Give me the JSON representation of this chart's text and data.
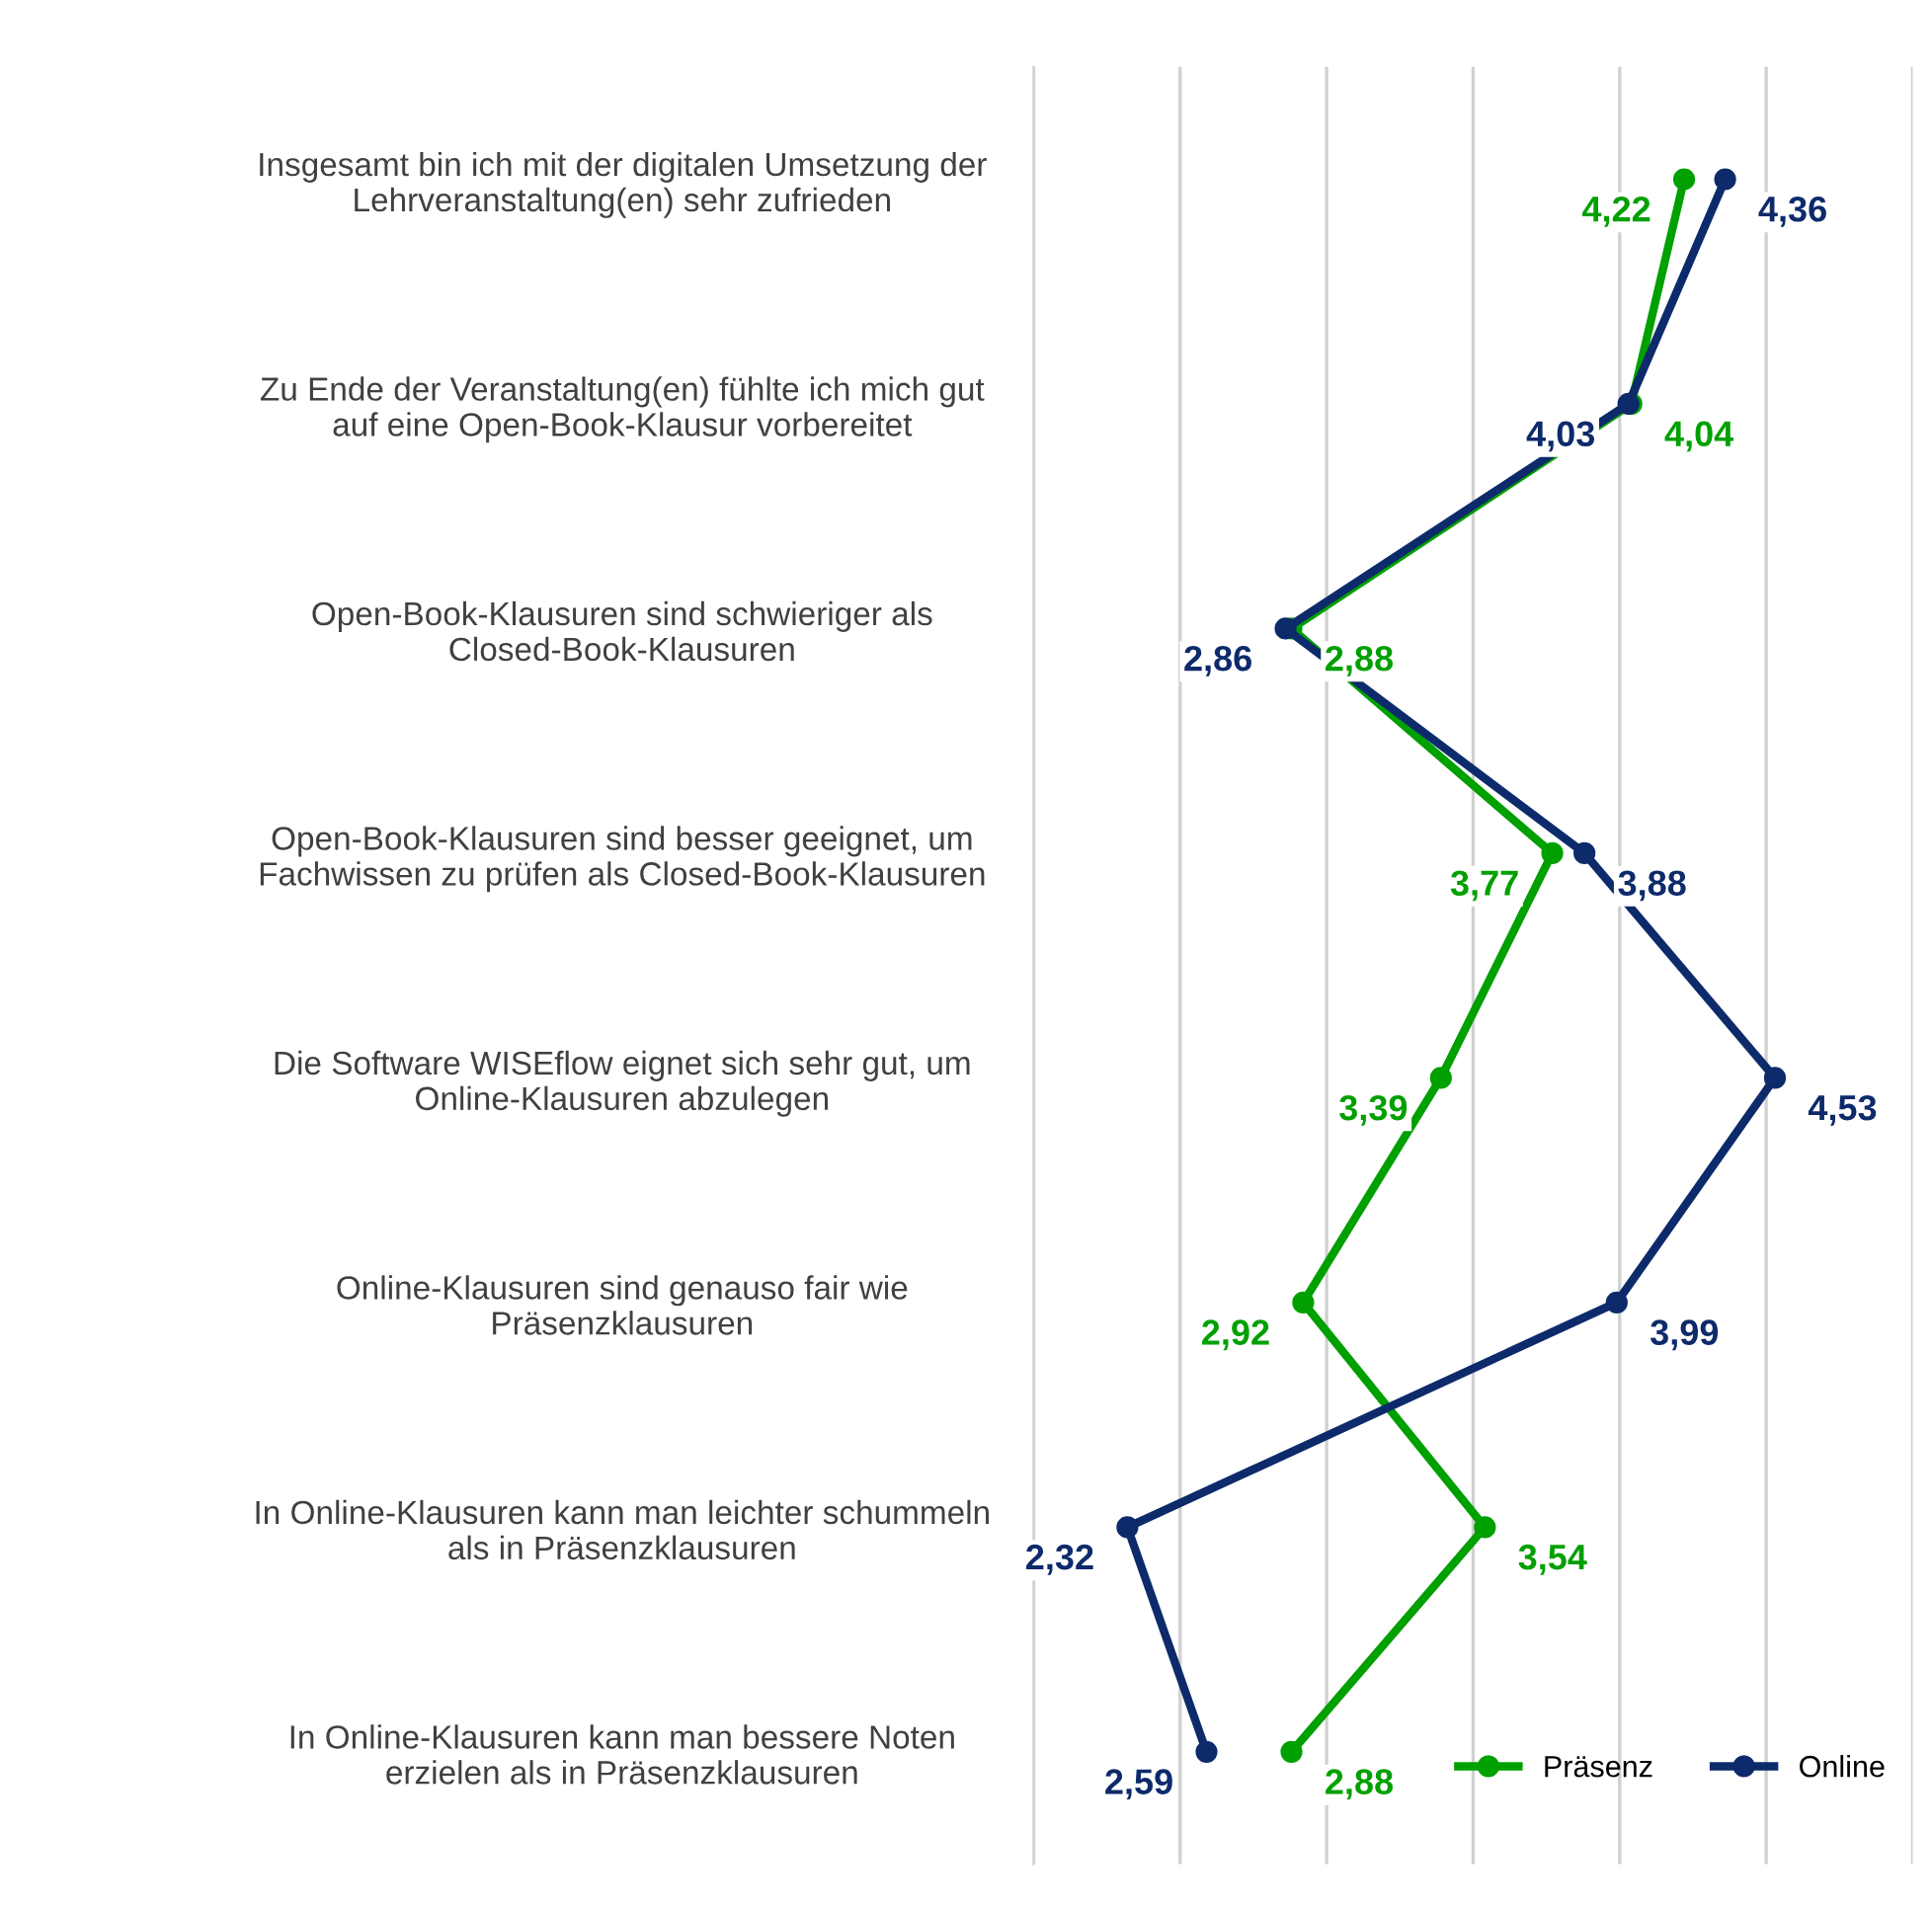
{
  "chart_data": {
    "type": "line",
    "orientation": "horizontal",
    "categories": [
      "Insgesamt bin ich mit der digitalen Umsetzung der\nLehrveranstaltung(en) sehr zufrieden",
      "Zu Ende der Veranstaltung(en) fühlte ich mich gut\nauf eine Open-Book-Klausur vorbereitet",
      "Open-Book-Klausuren sind schwieriger als\nClosed-Book-Klausuren",
      "Open-Book-Klausuren sind besser geeignet, um\nFachwissen zu prüfen als Closed-Book-Klausuren",
      "Die Software WISEflow eignet sich sehr gut, um\nOnline-Klausuren abzulegen",
      "Online-Klausuren sind genauso fair wie\nPräsenzklausuren",
      "In Online-Klausuren kann man leichter schummeln\nals in Präsenzklausuren",
      "In Online-Klausuren kann man bessere Noten\nerzielen als in Präsenzklausuren"
    ],
    "series": [
      {
        "name": "Präsenz",
        "color": "#00a000",
        "values": [
          4.22,
          4.04,
          2.88,
          3.77,
          3.39,
          2.92,
          3.54,
          2.88
        ],
        "value_labels": [
          "4,22",
          "4,04",
          "2,88",
          "3,77",
          "3,39",
          "2,92",
          "3,54",
          "2,88"
        ]
      },
      {
        "name": "Online",
        "color": "#0d2a6b",
        "values": [
          4.36,
          4.03,
          2.86,
          3.88,
          4.53,
          3.99,
          2.32,
          2.59
        ],
        "value_labels": [
          "4,36",
          "4,03",
          "2,86",
          "3,88",
          "4,53",
          "3,99",
          "2,32",
          "2,59"
        ]
      }
    ],
    "xlim": [
      2,
      5
    ],
    "xticks": [
      {
        "value": 2,
        "label": null
      },
      {
        "value": 2.5,
        "label": null
      },
      {
        "value": 3,
        "label": null
      },
      {
        "value": 3.5,
        "label": null
      },
      {
        "value": 4,
        "label": null
      },
      {
        "value": 4.5,
        "label": null
      },
      {
        "value": 5,
        "label": null
      }
    ],
    "tick_labels": "y",
    "grid": "x",
    "legend": "bottom right",
    "marker": "circle",
    "line_style": "solid"
  }
}
